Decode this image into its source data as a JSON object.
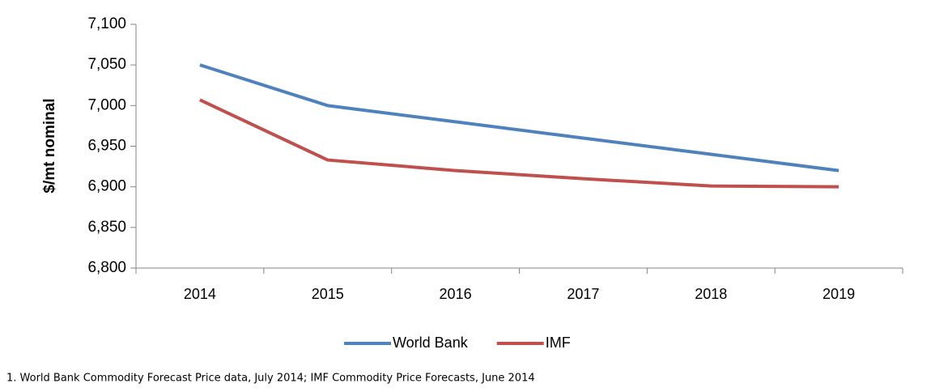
{
  "chart_data": {
    "type": "line",
    "y_label": "$/mt nominal",
    "categories": [
      "2014",
      "2015",
      "2016",
      "2017",
      "2018",
      "2019"
    ],
    "series": [
      {
        "name": "World Bank",
        "color": "#4f81bd",
        "values": [
          7050,
          7000,
          6980,
          6960,
          6940,
          6920
        ]
      },
      {
        "name": "IMF",
        "color": "#c0504d",
        "values": [
          7007,
          6933,
          6920,
          6910,
          6901,
          6900
        ]
      }
    ],
    "ylim": [
      6800,
      7100
    ],
    "yticks": [
      {
        "value": 6800,
        "label": "6,800"
      },
      {
        "value": 6850,
        "label": "6,850"
      },
      {
        "value": 6900,
        "label": "6,900"
      },
      {
        "value": 6950,
        "label": "6,950"
      },
      {
        "value": 7000,
        "label": "7,000"
      },
      {
        "value": 7050,
        "label": "7,050"
      },
      {
        "value": 7100,
        "label": "7,100"
      }
    ],
    "legend": "bottom",
    "footnote": "1. World Bank Commodity Forecast Price data, July 2014; IMF Commodity Price Forecasts, June 2014"
  }
}
